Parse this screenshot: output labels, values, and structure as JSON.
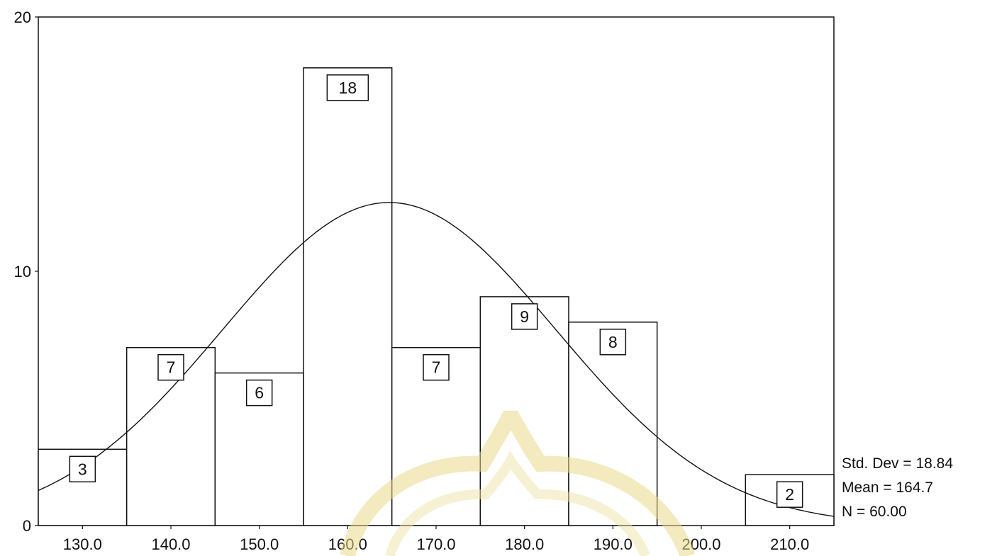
{
  "chart_data": {
    "type": "bar",
    "subtype": "histogram",
    "categories": [
      "130.0",
      "140.0",
      "150.0",
      "160.0",
      "170.0",
      "180.0",
      "190.0",
      "200.0",
      "210.0"
    ],
    "bins": [
      {
        "from": 125,
        "to": 135,
        "count": 3
      },
      {
        "from": 135,
        "to": 145,
        "count": 7
      },
      {
        "from": 145,
        "to": 155,
        "count": 6
      },
      {
        "from": 155,
        "to": 165,
        "count": 18
      },
      {
        "from": 165,
        "to": 175,
        "count": 7
      },
      {
        "from": 175,
        "to": 185,
        "count": 9
      },
      {
        "from": 185,
        "to": 195,
        "count": 8
      },
      {
        "from": 195,
        "to": 205,
        "count": 0
      },
      {
        "from": 205,
        "to": 215,
        "count": 2
      }
    ],
    "x_ticks": [
      130,
      140,
      150,
      160,
      170,
      180,
      190,
      200,
      210
    ],
    "x_tick_labels": [
      "130.0",
      "140.0",
      "150.0",
      "160.0",
      "170.0",
      "180.0",
      "190.0",
      "200.0",
      "210.0"
    ],
    "y_ticks": [
      0,
      10,
      20
    ],
    "y_tick_labels": [
      "0",
      "10",
      "20"
    ],
    "xlim": [
      125,
      215
    ],
    "ylim": [
      0,
      20
    ],
    "normal_curve": {
      "mean": 164.7,
      "std": 18.84,
      "n": 60,
      "bin_width": 10
    },
    "stats": {
      "std_dev": "Std. Dev = 18.84",
      "mean": "Mean = 164.7",
      "n": "N = 60.00"
    },
    "grid": false,
    "title": "",
    "xlabel": "",
    "ylabel": ""
  }
}
